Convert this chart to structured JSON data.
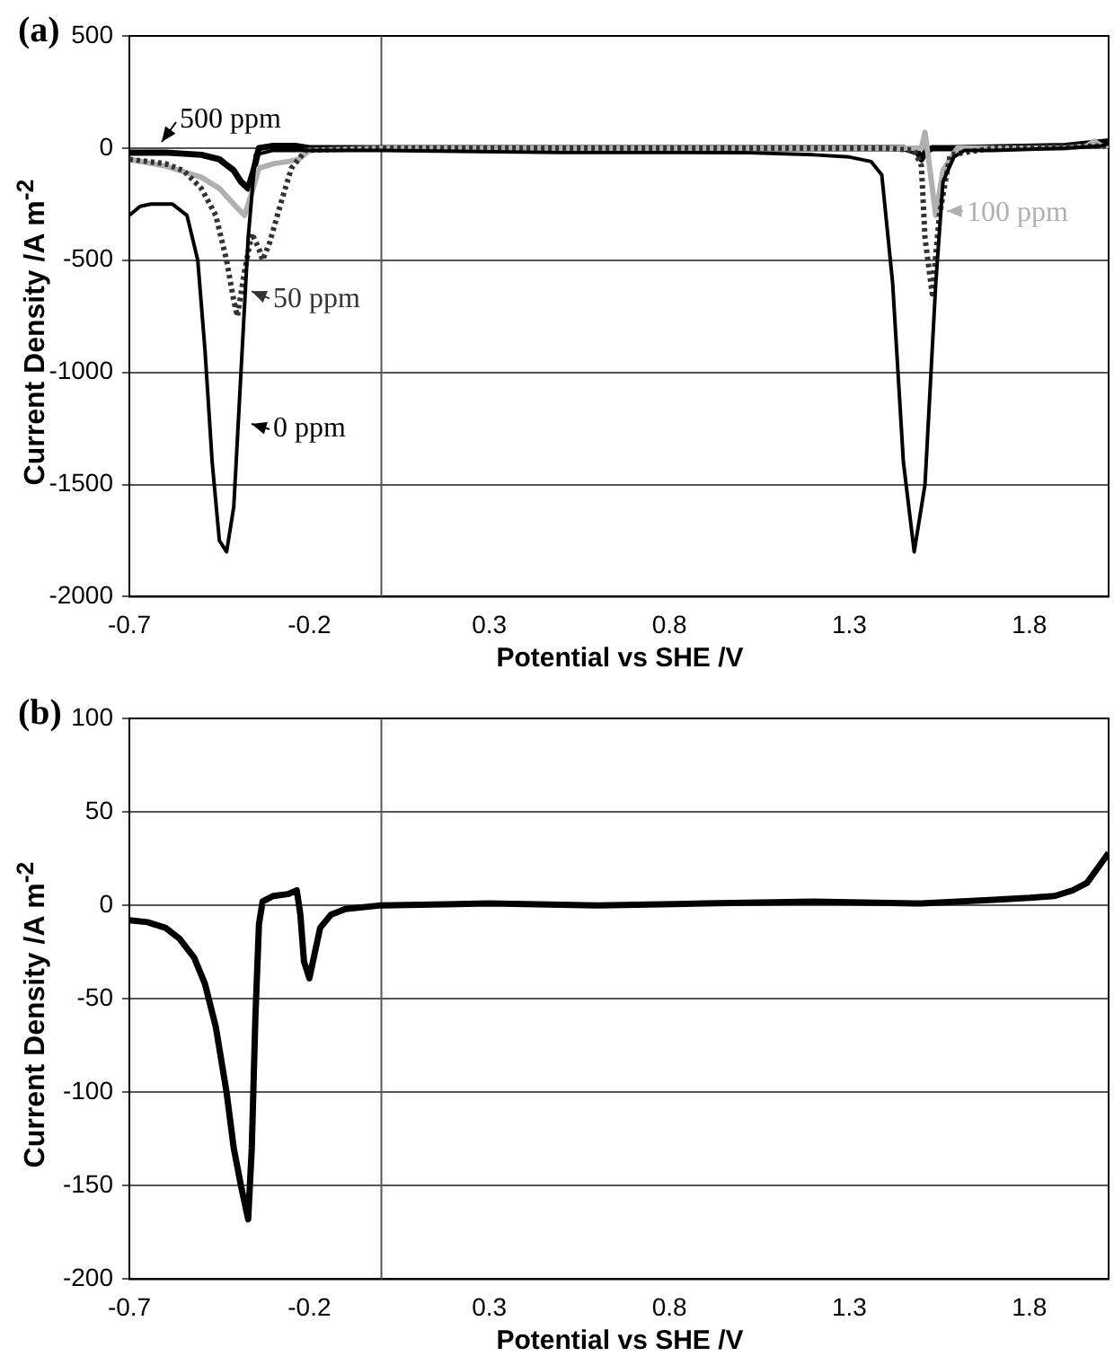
{
  "chart_data": [
    {
      "type": "line",
      "title": "(a)",
      "xlabel": "Potential vs SHE /V",
      "ylabel": "Current Density /A m$^{-2}$",
      "xlim": [
        -0.7,
        2.02
      ],
      "xticks": [
        -0.7,
        -0.2,
        0.3,
        0.8,
        1.3,
        1.8
      ],
      "ylim": [
        -2000,
        500
      ],
      "yticks": [
        500,
        0,
        -500,
        -1000,
        -1500,
        -2000
      ],
      "grid": "y",
      "legend": "top",
      "marker": "none",
      "line_style": "solid",
      "series": [
        {
          "name": "0 ppm",
          "color": "#000000",
          "x": [
            -0.7,
            -0.67,
            -0.64,
            -0.58,
            -0.54,
            -0.51,
            -0.49,
            -0.47,
            -0.45,
            -0.43,
            -0.41,
            -0.39,
            -0.37,
            -0.35,
            -0.3,
            0,
            0.5,
            1.0,
            1.2,
            1.3,
            1.36,
            1.39,
            1.42,
            1.45,
            1.48,
            1.51,
            1.54,
            1.56,
            1.59,
            1.62,
            1.7,
            1.9,
            2.0,
            2.02
          ],
          "values": [
            -300,
            -260,
            -250,
            -250,
            -300,
            -500,
            -900,
            -1400,
            -1750,
            -1800,
            -1600,
            -1000,
            -400,
            -30,
            -10,
            -10,
            -20,
            -20,
            -30,
            -40,
            -60,
            -120,
            -600,
            -1400,
            -1800,
            -1500,
            -600,
            -150,
            -40,
            -10,
            -10,
            0,
            10,
            20
          ]
        },
        {
          "name": "50 ppm",
          "color": "#333333",
          "line_style": "dotted",
          "x": [
            -0.7,
            -0.6,
            -0.55,
            -0.5,
            -0.46,
            -0.43,
            -0.41,
            -0.4,
            -0.38,
            -0.36,
            -0.34,
            -0.33,
            -0.31,
            -0.28,
            -0.25,
            -0.21,
            0,
            0.5,
            1.0,
            1.4,
            1.48,
            1.5,
            1.51,
            1.53,
            1.55,
            1.58,
            1.7,
            2.02
          ],
          "values": [
            -50,
            -70,
            -100,
            -180,
            -300,
            -500,
            -680,
            -750,
            -550,
            -380,
            -450,
            -500,
            -420,
            -250,
            -90,
            -10,
            0,
            0,
            0,
            0,
            -10,
            -80,
            -400,
            -650,
            -300,
            -30,
            0,
            10
          ]
        },
        {
          "name": "100 ppm",
          "color": "#b0b0b0",
          "x": [
            -0.7,
            -0.6,
            -0.5,
            -0.45,
            -0.41,
            -0.38,
            -0.36,
            -0.34,
            -0.3,
            -0.26,
            -0.23,
            -0.2,
            0,
            0.5,
            1.0,
            1.45,
            1.5,
            1.51,
            1.52,
            1.54,
            1.56,
            1.6,
            1.9,
            1.96,
            1.98,
            2.0,
            2.02
          ],
          "values": [
            -50,
            -80,
            -130,
            -180,
            -250,
            -300,
            -200,
            -90,
            -70,
            -60,
            -50,
            -10,
            0,
            0,
            0,
            0,
            0,
            70,
            -50,
            -300,
            -100,
            0,
            0,
            10,
            30,
            10,
            10
          ]
        },
        {
          "name": "500 ppm",
          "color": "#000000",
          "x": [
            -0.7,
            -0.6,
            -0.5,
            -0.45,
            -0.41,
            -0.39,
            -0.37,
            -0.355,
            -0.34,
            -0.3,
            -0.26,
            -0.24,
            -0.2,
            0,
            0.5,
            1.0,
            1.45,
            1.49,
            1.5,
            1.51,
            1.53,
            1.6,
            1.9,
            2.02
          ],
          "values": [
            -20,
            -20,
            -30,
            -50,
            -100,
            -150,
            -180,
            -100,
            0,
            10,
            10,
            10,
            0,
            0,
            0,
            0,
            0,
            -20,
            -50,
            -20,
            0,
            0,
            10,
            30
          ]
        }
      ]
    },
    {
      "type": "line",
      "title": "(b)",
      "xlabel": "Potential vs SHE /V",
      "ylabel": "Current Density /A m$^{-2}$",
      "xlim": [
        -0.7,
        2.02
      ],
      "xticks": [
        -0.7,
        -0.2,
        0.3,
        0.8,
        1.3,
        1.8
      ],
      "ylim": [
        -200,
        100
      ],
      "yticks": [
        100,
        50,
        0,
        -50,
        -100,
        -150,
        -200
      ],
      "grid": "y",
      "marker": "none",
      "line_style": "solid",
      "series": [
        {
          "color": "#000000",
          "x": [
            -0.7,
            -0.65,
            -0.6,
            -0.56,
            -0.52,
            -0.49,
            -0.46,
            -0.43,
            -0.41,
            -0.39,
            -0.37,
            -0.36,
            -0.35,
            -0.34,
            -0.33,
            -0.3,
            -0.26,
            -0.235,
            -0.225,
            -0.215,
            -0.2,
            -0.19,
            -0.17,
            -0.14,
            -0.1,
            0,
            0.3,
            0.6,
            0.9,
            1.2,
            1.5,
            1.6,
            1.7,
            1.8,
            1.87,
            1.92,
            1.96,
            1.99,
            2.02
          ],
          "values": [
            -8,
            -9,
            -12,
            -18,
            -28,
            -42,
            -65,
            -100,
            -130,
            -150,
            -168,
            -130,
            -60,
            -10,
            2,
            5,
            6,
            8,
            -5,
            -30,
            -39,
            -30,
            -12,
            -5,
            -2,
            0,
            1,
            0,
            1,
            2,
            1,
            2,
            3,
            4,
            5,
            8,
            12,
            20,
            28
          ]
        }
      ]
    }
  ]
}
